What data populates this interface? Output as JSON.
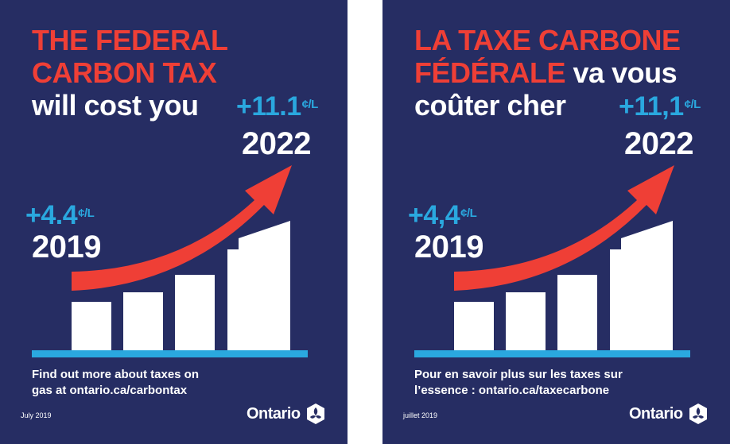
{
  "colors": {
    "background": "#262d63",
    "accent_red": "#ef3f36",
    "accent_blue": "#2aa8df",
    "white": "#ffffff"
  },
  "posters": {
    "en": {
      "headline_red_line1": "THE FEDERAL",
      "headline_red_line2": "CARBON TAX",
      "headline_white": "will cost you",
      "value_2019": "+4.4",
      "value_2022": "+11.1",
      "unit": "¢/L",
      "year_2019": "2019",
      "year_2022": "2022",
      "footer_line1": "Find out more about taxes on",
      "footer_line2": "gas at ontario.ca/carbontax",
      "date": "July 2019",
      "brand": "Ontario",
      "logo_icon": "ontario-trillium-icon"
    },
    "fr": {
      "headline_red_line1": "LA TAXE CARBONE",
      "headline_red_line2": "FÉDÉRALE",
      "headline_white_inline": "va vous",
      "headline_white": "coûter cher",
      "value_2019": "+4,4",
      "value_2022": "+11,1",
      "unit": "¢/L",
      "year_2019": "2019",
      "year_2022": "2022",
      "footer_line1": "Pour en savoir plus sur les taxes sur",
      "footer_line2": "l’essence : ontario.ca/taxecarbone",
      "date": "juillet 2019",
      "brand": "Ontario",
      "logo_icon": "ontario-trillium-icon"
    }
  },
  "chart_data": {
    "type": "bar",
    "bar_count": 5,
    "trend": "increasing",
    "start_label": "2019",
    "end_label": "2022"
  }
}
